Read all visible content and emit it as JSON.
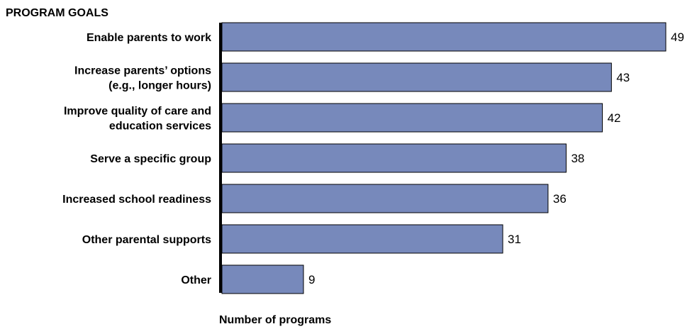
{
  "chart_data": {
    "type": "bar",
    "orientation": "horizontal",
    "title": "PROGRAM GOALS",
    "xlabel": "Number of programs",
    "ylabel": "",
    "categories": [
      [
        "Enable parents to work"
      ],
      [
        "Increase parents’ options",
        "(e.g., longer hours)"
      ],
      [
        "Improve quality of care and",
        "education services"
      ],
      [
        "Serve a specific group"
      ],
      [
        "Increased school readiness"
      ],
      [
        "Other parental supports"
      ],
      [
        "Other"
      ]
    ],
    "values": [
      49,
      43,
      42,
      38,
      36,
      31,
      9
    ],
    "value_labels": [
      "49",
      "43",
      "42",
      "38",
      "36",
      "31",
      "9"
    ],
    "xlim": [
      0,
      49
    ],
    "grid": false,
    "bar_color": "#7789bb"
  }
}
